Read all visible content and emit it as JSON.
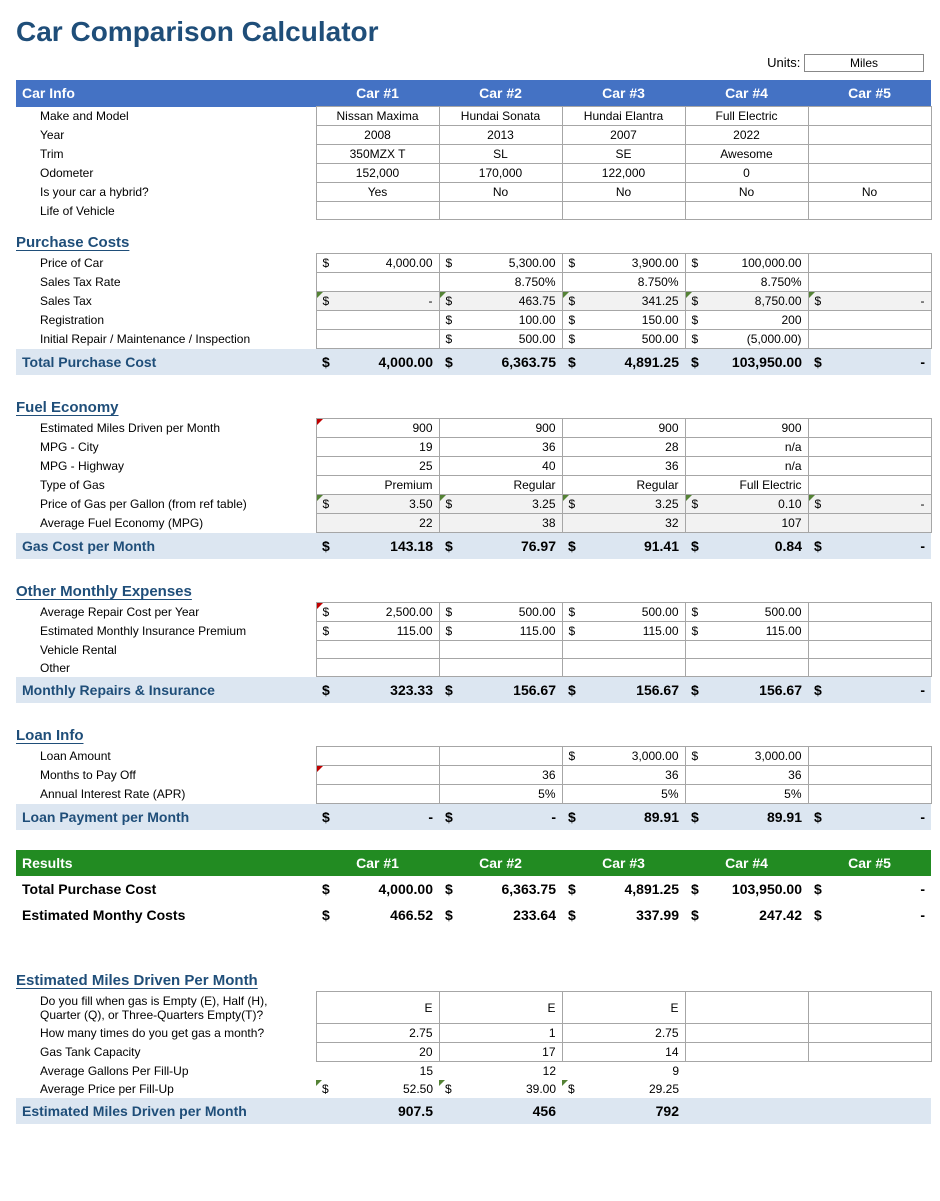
{
  "title": "Car Comparison Calculator",
  "units_label": "Units:",
  "units_value": "Miles",
  "columns": [
    "Car #1",
    "Car #2",
    "Car #3",
    "Car #4",
    "Car #5"
  ],
  "car_info": {
    "header": "Car Info",
    "rows": [
      {
        "label": "Make and Model",
        "vals": [
          "Nissan Maxima",
          "Hundai Sonata",
          "Hundai Elantra",
          "Full Electric",
          ""
        ],
        "ctr": true
      },
      {
        "label": "Year",
        "vals": [
          "2008",
          "2013",
          "2007",
          "2022",
          ""
        ],
        "ctr": true
      },
      {
        "label": "Trim",
        "vals": [
          "350MZX T",
          "SL",
          "SE",
          "Awesome",
          ""
        ],
        "ctr": true
      },
      {
        "label": "Odometer",
        "vals": [
          "152,000",
          "170,000",
          "122,000",
          "0",
          ""
        ],
        "ctr": true
      },
      {
        "label": "Is your car a hybrid?",
        "vals": [
          "Yes",
          "No",
          "No",
          "No",
          "No"
        ],
        "ctr": true
      },
      {
        "label": "Life of Vehicle",
        "vals": [
          "",
          "",
          "",
          "",
          ""
        ],
        "ctr": true
      }
    ]
  },
  "purchase": {
    "header": "Purchase Costs",
    "rows": [
      {
        "label": "Price of Car",
        "money": true,
        "vals": [
          "4,000.00",
          "5,300.00",
          "3,900.00",
          "100,000.00",
          ""
        ]
      },
      {
        "label": "Sales Tax Rate",
        "vals": [
          "",
          "8.750%",
          "8.750%",
          "8.750%",
          ""
        ]
      },
      {
        "label": "Sales Tax",
        "money": true,
        "calc": true,
        "green": true,
        "vals": [
          "-",
          "463.75",
          "341.25",
          "8,750.00",
          "-"
        ]
      },
      {
        "label": "Registration",
        "money": true,
        "suppress0": true,
        "vals": [
          "",
          "100.00",
          "150.00",
          "200",
          ""
        ]
      },
      {
        "label": "Initial Repair / Maintenance / Inspection",
        "money": true,
        "suppress0": true,
        "vals": [
          "",
          "500.00",
          "500.00",
          "(5,000.00)",
          ""
        ]
      }
    ],
    "total": {
      "label": "Total Purchase Cost",
      "money": true,
      "vals": [
        "4,000.00",
        "6,363.75",
        "4,891.25",
        "103,950.00",
        "-"
      ]
    }
  },
  "fuel": {
    "header": "Fuel Economy",
    "rows": [
      {
        "label": "Estimated Miles Driven per Month",
        "red0": true,
        "vals": [
          "900",
          "900",
          "900",
          "900",
          ""
        ]
      },
      {
        "label": "MPG - City",
        "vals": [
          "19",
          "36",
          "28",
          "n/a",
          ""
        ]
      },
      {
        "label": "MPG - Highway",
        "vals": [
          "25",
          "40",
          "36",
          "n/a",
          ""
        ]
      },
      {
        "label": "Type of Gas",
        "vals": [
          "Premium",
          "Regular",
          "Regular",
          "Full Electric",
          ""
        ]
      },
      {
        "label": "Price of Gas per Gallon (from ref table)",
        "money": true,
        "calc": true,
        "green": true,
        "vals": [
          "3.50",
          "3.25",
          "3.25",
          "0.10",
          "-"
        ],
        "nosymlast": true
      },
      {
        "label": "Average Fuel Economy (MPG)",
        "calc": true,
        "vals": [
          "22",
          "38",
          "32",
          "107",
          ""
        ]
      }
    ],
    "total": {
      "label": "Gas Cost per Month",
      "money": true,
      "vals": [
        "143.18",
        "76.97",
        "91.41",
        "0.84",
        "-"
      ]
    }
  },
  "other": {
    "header": "Other Monthly Expenses",
    "rows": [
      {
        "label": "Average Repair Cost per Year",
        "money": true,
        "red0": true,
        "vals": [
          "2,500.00",
          "500.00",
          "500.00",
          "500.00",
          ""
        ]
      },
      {
        "label": "Estimated Monthly Insurance Premium",
        "money": true,
        "vals": [
          "115.00",
          "115.00",
          "115.00",
          "115.00",
          ""
        ]
      },
      {
        "label": "Vehicle Rental",
        "vals": [
          "",
          "",
          "",
          "",
          ""
        ]
      },
      {
        "label": "Other",
        "vals": [
          "",
          "",
          "",
          "",
          ""
        ]
      }
    ],
    "total": {
      "label": "Monthly Repairs & Insurance",
      "money": true,
      "vals": [
        "323.33",
        "156.67",
        "156.67",
        "156.67",
        "-"
      ]
    }
  },
  "loan": {
    "header": "Loan Info",
    "rows": [
      {
        "label": "Loan Amount",
        "money": true,
        "suppress0": true,
        "vals": [
          "",
          "",
          "3,000.00",
          "3,000.00",
          ""
        ]
      },
      {
        "label": "Months to Pay Off",
        "red0": true,
        "vals": [
          "",
          "36",
          "36",
          "36",
          ""
        ]
      },
      {
        "label": "Annual Interest Rate (APR)",
        "vals": [
          "",
          "5%",
          "5%",
          "5%",
          ""
        ]
      }
    ],
    "total": {
      "label": "Loan Payment per Month",
      "money": true,
      "vals": [
        "-",
        "-",
        "89.91",
        "89.91",
        "-"
      ]
    }
  },
  "results": {
    "header": "Results",
    "rows": [
      {
        "label": "Total Purchase Cost",
        "money": true,
        "vals": [
          "4,000.00",
          "6,363.75",
          "4,891.25",
          "103,950.00",
          "-"
        ]
      },
      {
        "label": "Estimated Monthy Costs",
        "money": true,
        "vals": [
          "466.52",
          "233.64",
          "337.99",
          "247.42",
          "-"
        ]
      }
    ]
  },
  "miles": {
    "header": "Estimated Miles Driven Per Month",
    "rows": [
      {
        "label": "Do you fill when gas is Empty (E), Half (H), Quarter (Q), or Three-Quarters Empty(T)?",
        "vals": [
          "E",
          "E",
          "E",
          "",
          ""
        ]
      },
      {
        "label": "How many times do you get gas a month?",
        "vals": [
          "2.75",
          "1",
          "2.75",
          "",
          ""
        ]
      },
      {
        "label": "Gas Tank Capacity",
        "vals": [
          "20",
          "17",
          "14",
          "",
          ""
        ]
      },
      {
        "label": "Average Gallons Per Fill-Up",
        "nb": true,
        "vals": [
          "15",
          "12",
          "9",
          "",
          ""
        ]
      },
      {
        "label": "Average Price per Fill-Up",
        "money": true,
        "nb": true,
        "green": true,
        "vals": [
          "52.50",
          "39.00",
          "29.25",
          "",
          ""
        ]
      }
    ],
    "total": {
      "label": "Estimated Miles Driven per Month",
      "vals": [
        "907.5",
        "456",
        "792",
        "",
        ""
      ]
    }
  },
  "colors": {
    "header_blue": "#4472c4",
    "header_green": "#228b22",
    "text_dark": "#1f4e79",
    "total_bg": "#dce6f1",
    "calc_bg": "#f2f2f2",
    "grid_border": "#a6a6a6"
  }
}
